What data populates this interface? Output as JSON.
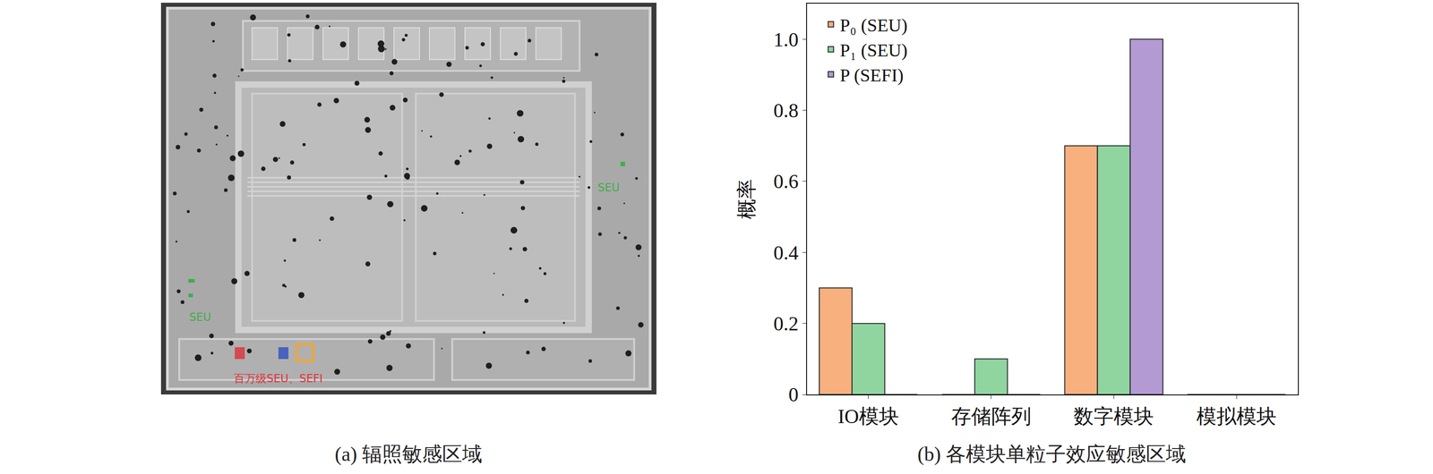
{
  "panel_a": {
    "caption": "(a) 辐照敏感区域",
    "labels": [
      {
        "text": "SEU",
        "color": "#3fae4a"
      },
      {
        "text": "SEU",
        "color": "#3fae4a"
      },
      {
        "text": "百万级SEU、SEFI",
        "color": "#e0303a"
      }
    ]
  },
  "chart_data": {
    "type": "bar",
    "caption": "(b) 各模块单粒子效应敏感区域",
    "ylabel": "概率",
    "categories": [
      "IO模块",
      "存储阵列",
      "数字模块",
      "模拟模块"
    ],
    "series": [
      {
        "name": "P₀ (SEU)",
        "color": "#f7b07e",
        "values": [
          0.3,
          0,
          0.7,
          0
        ]
      },
      {
        "name": "P₁ (SEU)",
        "color": "#90d5a0",
        "values": [
          0.2,
          0.1,
          0.7,
          0
        ]
      },
      {
        "name": "P (SEFI)",
        "color": "#b39ad3",
        "values": [
          0,
          0,
          1.0,
          0
        ]
      }
    ],
    "ylim": [
      0,
      1.1
    ],
    "yticks": [
      0,
      0.2,
      0.4,
      0.6,
      0.8,
      {
        "value": 1.0,
        "label": "1.0"
      }
    ],
    "grid": false,
    "legend": "upper left"
  }
}
